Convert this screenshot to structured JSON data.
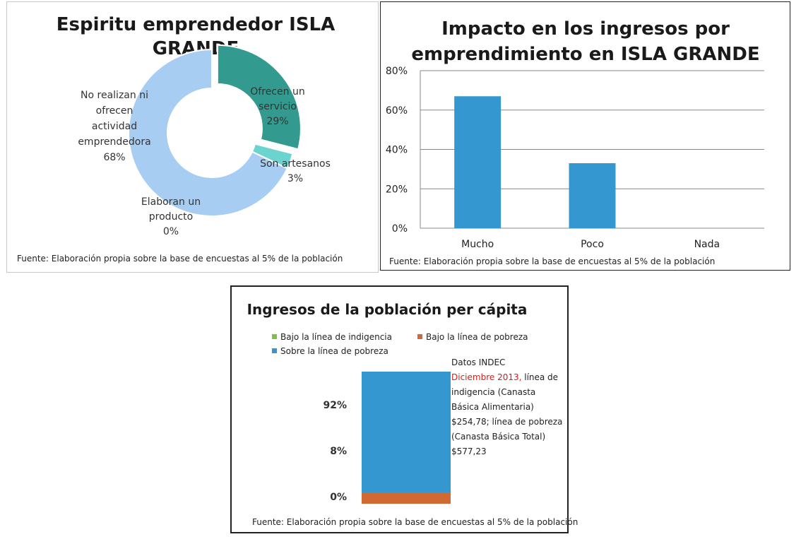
{
  "chart_data": [
    {
      "type": "pie",
      "title_lines": [
        "Espiritu emprendedor ISLA",
        "GRANDE"
      ],
      "slices": [
        {
          "label": "Ofrecen un servicio",
          "value": 29,
          "color": "#339a8f"
        },
        {
          "label": "Son artesanos",
          "value": 3,
          "color": "#6cd4cf"
        },
        {
          "label": "Elaboran un producto",
          "value": 0,
          "color": "#9dc3ea"
        },
        {
          "label": "No realizan ni ofrecen actividad emprendedora",
          "value": 68,
          "color": "#a8cdf2"
        }
      ],
      "label_texts": {
        "servicio": [
          "Ofrecen un",
          "servicio",
          "29%"
        ],
        "artesanos": [
          "Son artesanos",
          "3%"
        ],
        "producto": [
          "Elaboran un",
          "producto",
          "0%"
        ],
        "no_realizan": [
          "No realizan ni",
          "ofrecen",
          "actividad",
          "emprendedora",
          "68%"
        ]
      },
      "source": "Fuente: Elaboración propia sobre la base de encuestas al  5%  de la población"
    },
    {
      "type": "bar",
      "title_lines": [
        "Impacto en los ingresos por",
        "emprendimiento  en ISLA GRANDE"
      ],
      "categories": [
        "Mucho",
        "Poco",
        "Nada"
      ],
      "values": [
        67,
        33,
        0
      ],
      "ylim": [
        0,
        80
      ],
      "yticks": [
        "0%",
        "20%",
        "40%",
        "60%",
        "80%"
      ],
      "grid": true,
      "bar_color": "#3597d0",
      "source": "Fuente: Elaboración propia sobre la base de encuestas al 5%  de la población"
    },
    {
      "type": "bar",
      "stacked": true,
      "title": "Ingresos de la población per cápita",
      "legend": [
        {
          "name": "Bajo la línea de indigencia",
          "color": "#7ec349"
        },
        {
          "name": "Bajo la línea de pobreza",
          "color": "#d06a32"
        },
        {
          "name": "Sobre la línea de pobreza",
          "color": "#3597d0"
        }
      ],
      "series": [
        {
          "name": "Bajo la línea de indigencia",
          "values": [
            0
          ]
        },
        {
          "name": "Bajo la línea de pobreza",
          "values": [
            8
          ]
        },
        {
          "name": "Sobre la línea de pobreza",
          "values": [
            92
          ]
        }
      ],
      "value_labels": [
        "92%",
        "8%",
        "0%"
      ],
      "note": {
        "line1": "Datos INDEC",
        "red": "Diciembre 2013,",
        "rest": " línea de indigencia (Canasta Básica Alimentaria) $254,78; línea de pobreza (Canasta Básica Total) $577,23"
      },
      "source": "Fuente: Elaboración propia sobre la base de encuestas al  5%  de la población"
    }
  ]
}
